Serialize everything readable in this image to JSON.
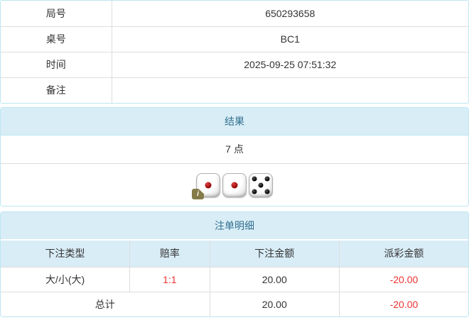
{
  "colors": {
    "panel_border": "#bce8f1",
    "heading_bg": "#d9edf7",
    "heading_text": "#31708f",
    "table_border": "#dddddd",
    "text": "#333333",
    "negative": "#ee3333",
    "badge_bg": "#857b48"
  },
  "info_table": {
    "rows": [
      {
        "label": "局号",
        "value": "650293658"
      },
      {
        "label": "桌号",
        "value": "BC1"
      },
      {
        "label": "时间",
        "value": "2025-09-25 07:51:32"
      },
      {
        "label": "备注",
        "value": ""
      }
    ]
  },
  "result_panel": {
    "title": "结果",
    "points": "7 点",
    "dice": [
      {
        "value": 1,
        "pip_color": "red"
      },
      {
        "value": 1,
        "pip_color": "red"
      },
      {
        "value": 5,
        "pip_color": "black"
      }
    ],
    "info_badge": "i"
  },
  "bets_panel": {
    "title": "注单明细",
    "columns": [
      "下注类型",
      "赔率",
      "下注金额",
      "派彩金额"
    ],
    "rows": [
      {
        "type": "大/小(大)",
        "odds": "1:1",
        "bet": "20.00",
        "payout": "-20.00"
      }
    ],
    "total": {
      "label": "总计",
      "bet": "20.00",
      "payout": "-20.00"
    }
  }
}
